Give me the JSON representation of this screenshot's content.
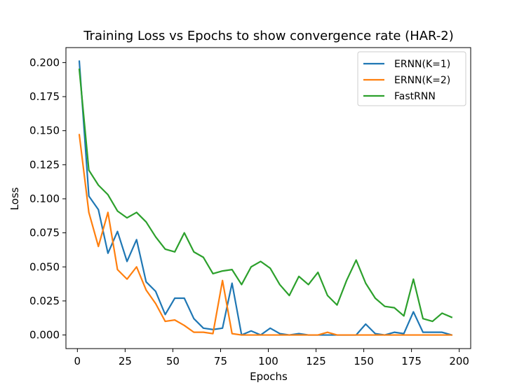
{
  "chart_data": {
    "type": "line",
    "title": "Training Loss vs Epochs to show convergence rate (HAR-2)",
    "xlabel": "Epochs",
    "ylabel": "Loss",
    "xlim": [
      -6,
      206
    ],
    "ylim": [
      -0.01,
      0.211
    ],
    "xticks": [
      0,
      25,
      50,
      75,
      100,
      125,
      150,
      175,
      200
    ],
    "yticks": [
      0.0,
      0.025,
      0.05,
      0.075,
      0.1,
      0.125,
      0.15,
      0.175,
      0.2
    ],
    "ytick_labels": [
      "0.000",
      "0.025",
      "0.050",
      "0.075",
      "0.100",
      "0.125",
      "0.150",
      "0.175",
      "0.200"
    ],
    "grid": false,
    "legend": "top-right",
    "x": [
      1,
      6,
      11,
      16,
      21,
      26,
      31,
      36,
      41,
      46,
      51,
      56,
      61,
      66,
      71,
      76,
      81,
      86,
      91,
      96,
      101,
      106,
      111,
      116,
      121,
      126,
      131,
      136,
      141,
      146,
      151,
      156,
      161,
      166,
      171,
      176,
      181,
      186,
      191,
      196
    ],
    "series": [
      {
        "name": "ERNN(K=1)",
        "color": "#1f77b4",
        "values": [
          0.201,
          0.102,
          0.092,
          0.06,
          0.076,
          0.054,
          0.07,
          0.039,
          0.032,
          0.015,
          0.027,
          0.027,
          0.012,
          0.005,
          0.004,
          0.005,
          0.038,
          0.0,
          0.003,
          0.0,
          0.005,
          0.001,
          0.0,
          0.001,
          0.0,
          0.0,
          0.0,
          0.0,
          0.0,
          0.0,
          0.008,
          0.001,
          0.0,
          0.002,
          0.001,
          0.017,
          0.002,
          0.002,
          0.002,
          0.0
        ]
      },
      {
        "name": "ERNN(K=2)",
        "color": "#ff7f0e",
        "values": [
          0.147,
          0.09,
          0.065,
          0.09,
          0.048,
          0.041,
          0.05,
          0.033,
          0.023,
          0.01,
          0.011,
          0.007,
          0.002,
          0.002,
          0.001,
          0.04,
          0.001,
          0.0,
          0.0,
          0.0,
          0.0,
          0.0,
          0.0,
          0.0,
          0.0,
          0.0,
          0.002,
          0.0,
          0.0,
          0.0,
          0.0,
          0.0,
          0.0,
          0.0,
          0.0,
          0.0,
          0.0,
          0.0,
          0.0,
          0.0
        ]
      },
      {
        "name": "FastRNN",
        "color": "#2ca02c",
        "values": [
          0.195,
          0.121,
          0.11,
          0.103,
          0.091,
          0.086,
          0.09,
          0.083,
          0.072,
          0.063,
          0.061,
          0.075,
          0.061,
          0.057,
          0.045,
          0.047,
          0.048,
          0.037,
          0.05,
          0.054,
          0.049,
          0.037,
          0.029,
          0.043,
          0.037,
          0.046,
          0.029,
          0.022,
          0.04,
          0.055,
          0.038,
          0.027,
          0.021,
          0.02,
          0.014,
          0.041,
          0.012,
          0.01,
          0.016,
          0.013
        ]
      }
    ]
  }
}
